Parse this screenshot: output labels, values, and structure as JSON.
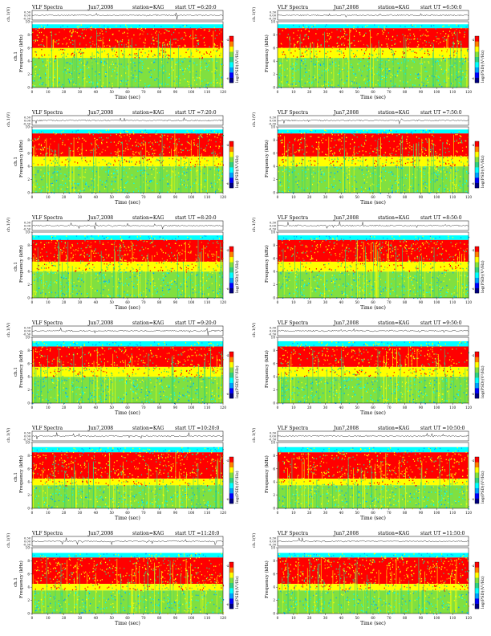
{
  "page": {
    "date": "Jun7,2008"
  },
  "chart_data": [
    {
      "type": "heatmap",
      "title": "VLF Spectra",
      "date": "Jun7,2008",
      "station": "station=KAG",
      "start": "start UT =6:20:0",
      "timeseries_label": "ch.1(V)",
      "timeseries_ticks": [
        "0.30",
        "0.00",
        "-0.30"
      ],
      "ylabel": "Frequency (kHz)",
      "channel_label": "ch.1",
      "xlabel": "Time (sec)",
      "xlim": [
        0,
        120
      ],
      "ylim": [
        0,
        10
      ],
      "x_ticks": [
        0,
        10,
        20,
        30,
        40,
        50,
        60,
        70,
        80,
        90,
        100,
        110,
        120
      ],
      "y_ticks": [
        0,
        2,
        4,
        6,
        8,
        10
      ],
      "colorbar_label": "log(PSD)(V²/Hz)",
      "colorbar_ticks": [
        "-4",
        "-6"
      ],
      "colorscale": [
        "#000080",
        "#0000ff",
        "#00a0ff",
        "#00ffff",
        "#30d080",
        "#80e040",
        "#ffff00",
        "#ff8000",
        "#ff0000"
      ],
      "intensity_profile": {
        "band_top_khz": 9.6,
        "red_band_khz": [
          6.0,
          9.0
        ],
        "yellow_khz": [
          4.5,
          6.0
        ],
        "green_khz": [
          0,
          4.5
        ]
      }
    },
    {
      "type": "heatmap",
      "title": "VLF Spectra",
      "date": "Jun7,2008",
      "station": "station=KAG",
      "start": "start UT =6:50:0",
      "timeseries_label": "ch.1(V)",
      "timeseries_ticks": [
        "0.30",
        "0.00",
        "-0.30"
      ],
      "ylabel": "Frequency (kHz)",
      "channel_label": "",
      "xlabel": "Time (sec)",
      "xlim": [
        0,
        120
      ],
      "ylim": [
        0,
        10
      ],
      "x_ticks": [
        0,
        10,
        20,
        30,
        40,
        50,
        60,
        70,
        80,
        90,
        100,
        110,
        120
      ],
      "y_ticks": [
        0,
        2,
        4,
        6,
        8,
        10
      ],
      "colorbar_label": "log(PSD)(V²/Hz)",
      "colorbar_ticks": [
        "-4",
        "-6"
      ],
      "colorscale": [
        "#000080",
        "#0000ff",
        "#00a0ff",
        "#00ffff",
        "#30d080",
        "#80e040",
        "#ffff00",
        "#ff8000",
        "#ff0000"
      ],
      "intensity_profile": {
        "band_top_khz": 9.6,
        "red_band_khz": [
          6.0,
          9.0
        ],
        "yellow_khz": [
          4.5,
          6.0
        ],
        "green_khz": [
          0,
          4.5
        ]
      }
    },
    {
      "type": "heatmap",
      "title": "VLF Spectra",
      "date": "Jun7,2008",
      "station": "station=KAG",
      "start": "start UT =7:20:0",
      "timeseries_label": "ch.1(V)",
      "timeseries_ticks": [
        "0.30",
        "0.00",
        "-0.30"
      ],
      "ylabel": "Frequency (kHz)",
      "channel_label": "ch.1",
      "xlabel": "Time (sec)",
      "xlim": [
        0,
        120
      ],
      "ylim": [
        0,
        10
      ],
      "x_ticks": [
        0,
        10,
        20,
        30,
        40,
        50,
        60,
        70,
        80,
        90,
        100,
        110,
        120
      ],
      "y_ticks": [
        0,
        2,
        4,
        6,
        8,
        10
      ],
      "colorbar_label": "log(PSD)(V²/Hz)",
      "colorbar_ticks": [
        "-4",
        "-6"
      ],
      "colorscale": [
        "#000080",
        "#0000ff",
        "#00a0ff",
        "#00ffff",
        "#30d080",
        "#80e040",
        "#ffff00",
        "#ff8000",
        "#ff0000"
      ],
      "intensity_profile": {
        "band_top_khz": 9.6,
        "red_band_khz": [
          5.5,
          9.0
        ],
        "yellow_khz": [
          4.0,
          5.5
        ],
        "green_khz": [
          0,
          4.0
        ]
      }
    },
    {
      "type": "heatmap",
      "title": "VLF Spectra",
      "date": "Jun7,2008",
      "station": "station=KAG",
      "start": "start UT =7:50:0",
      "timeseries_label": "ch.1(V)",
      "timeseries_ticks": [
        "0.30",
        "0.00",
        "-0.30"
      ],
      "ylabel": "Frequency (kHz)",
      "channel_label": "",
      "xlabel": "Time (sec)",
      "xlim": [
        0,
        120
      ],
      "ylim": [
        0,
        10
      ],
      "x_ticks": [
        0,
        10,
        20,
        30,
        40,
        50,
        60,
        70,
        80,
        90,
        100,
        110,
        120
      ],
      "y_ticks": [
        0,
        2,
        4,
        6,
        8,
        10
      ],
      "colorbar_label": "log(PSD)(V²/Hz)",
      "colorbar_ticks": [
        "-4",
        "-6"
      ],
      "colorscale": [
        "#000080",
        "#0000ff",
        "#00a0ff",
        "#00ffff",
        "#30d080",
        "#80e040",
        "#ffff00",
        "#ff8000",
        "#ff0000"
      ],
      "intensity_profile": {
        "band_top_khz": 9.6,
        "red_band_khz": [
          5.5,
          9.0
        ],
        "yellow_khz": [
          4.0,
          5.5
        ],
        "green_khz": [
          0,
          4.0
        ]
      }
    },
    {
      "type": "heatmap",
      "title": "VLF Spectra",
      "date": "Jun7,2008",
      "station": "station=KAG",
      "start": "start UT =8:20:0",
      "timeseries_label": "ch.1(V)",
      "timeseries_ticks": [
        "0.30",
        "0.00",
        "-0.30"
      ],
      "ylabel": "Frequency (kHz)",
      "channel_label": "ch.1",
      "xlabel": "Time (sec)",
      "xlim": [
        0,
        120
      ],
      "ylim": [
        0,
        10
      ],
      "x_ticks": [
        0,
        10,
        20,
        30,
        40,
        50,
        60,
        70,
        80,
        90,
        100,
        110,
        120
      ],
      "y_ticks": [
        0,
        2,
        4,
        6,
        8,
        10
      ],
      "colorbar_label": "log(PSD)(V²/Hz)",
      "colorbar_ticks": [
        "-4",
        "-6"
      ],
      "colorscale": [
        "#000080",
        "#0000ff",
        "#00a0ff",
        "#00ffff",
        "#30d080",
        "#80e040",
        "#ffff00",
        "#ff8000",
        "#ff0000"
      ],
      "intensity_profile": {
        "band_top_khz": 9.5,
        "red_band_khz": [
          5.5,
          8.8
        ],
        "yellow_khz": [
          4.0,
          5.5
        ],
        "green_khz": [
          0,
          4.0
        ]
      }
    },
    {
      "type": "heatmap",
      "title": "VLF Spectra",
      "date": "Jun7,2008",
      "station": "station=KAG",
      "start": "start UT =8:50:0",
      "timeseries_label": "ch.1(V)",
      "timeseries_ticks": [
        "0.30",
        "0.00",
        "-0.30"
      ],
      "ylabel": "Frequency (kHz)",
      "channel_label": "",
      "xlabel": "Time (sec)",
      "xlim": [
        0,
        120
      ],
      "ylim": [
        0,
        10
      ],
      "x_ticks": [
        0,
        10,
        20,
        30,
        40,
        50,
        60,
        70,
        80,
        90,
        100,
        110,
        120
      ],
      "y_ticks": [
        0,
        2,
        4,
        6,
        8,
        10
      ],
      "colorbar_label": "log(PSD)(V²/Hz)",
      "colorbar_ticks": [
        "-4",
        "-6"
      ],
      "colorscale": [
        "#000080",
        "#0000ff",
        "#00a0ff",
        "#00ffff",
        "#30d080",
        "#80e040",
        "#ffff00",
        "#ff8000",
        "#ff0000"
      ],
      "intensity_profile": {
        "band_top_khz": 9.5,
        "red_band_khz": [
          5.5,
          8.8
        ],
        "yellow_khz": [
          4.0,
          5.5
        ],
        "green_khz": [
          0,
          4.0
        ]
      }
    },
    {
      "type": "heatmap",
      "title": "VLF Spectra",
      "date": "Jun7,2008",
      "station": "station=KAG",
      "start": "start UT =9:20:0",
      "timeseries_label": "ch.1(V)",
      "timeseries_ticks": [
        "0.30",
        "0.00",
        "-0.30"
      ],
      "ylabel": "Frequency (kHz)",
      "channel_label": "ch.1",
      "xlabel": "Time (sec)",
      "xlim": [
        0,
        120
      ],
      "ylim": [
        0,
        10
      ],
      "x_ticks": [
        0,
        10,
        20,
        30,
        40,
        50,
        60,
        70,
        80,
        90,
        100,
        110,
        120
      ],
      "y_ticks": [
        0,
        2,
        4,
        6,
        8,
        10
      ],
      "colorbar_label": "log(PSD)(V²/Hz)",
      "colorbar_ticks": [
        "-4",
        "-6"
      ],
      "colorscale": [
        "#000080",
        "#0000ff",
        "#00a0ff",
        "#00ffff",
        "#30d080",
        "#80e040",
        "#ffff00",
        "#ff8000",
        "#ff0000"
      ],
      "intensity_profile": {
        "band_top_khz": 9.4,
        "red_band_khz": [
          5.5,
          8.6
        ],
        "yellow_khz": [
          4.0,
          5.5
        ],
        "green_khz": [
          0,
          4.0
        ]
      }
    },
    {
      "type": "heatmap",
      "title": "VLF Spectra",
      "date": "Jun7,2008",
      "station": "station=KAG",
      "start": "start UT =9:50:0",
      "timeseries_label": "ch.1(V)",
      "timeseries_ticks": [
        "0.30",
        "0.00",
        "-0.30"
      ],
      "ylabel": "Frequency (kHz)",
      "channel_label": "",
      "xlabel": "Time (sec)",
      "xlim": [
        0,
        120
      ],
      "ylim": [
        0,
        10
      ],
      "x_ticks": [
        0,
        10,
        20,
        30,
        40,
        50,
        60,
        70,
        80,
        90,
        100,
        110,
        120
      ],
      "y_ticks": [
        0,
        2,
        4,
        6,
        8,
        10
      ],
      "colorbar_label": "log(PSD)(V²/Hz)",
      "colorbar_ticks": [
        "-4",
        "-6"
      ],
      "colorscale": [
        "#000080",
        "#0000ff",
        "#00a0ff",
        "#00ffff",
        "#30d080",
        "#80e040",
        "#ffff00",
        "#ff8000",
        "#ff0000"
      ],
      "intensity_profile": {
        "band_top_khz": 9.4,
        "red_band_khz": [
          5.5,
          8.6
        ],
        "yellow_khz": [
          4.0,
          5.5
        ],
        "green_khz": [
          0,
          4.0
        ]
      }
    },
    {
      "type": "heatmap",
      "title": "VLF Spectra",
      "date": "Jun7,2008",
      "station": "station=KAG",
      "start": "start UT =10:20:0",
      "timeseries_label": "ch.1(V)",
      "timeseries_ticks": [
        "0.30",
        "0.00",
        "-0.30"
      ],
      "ylabel": "Frequency (kHz)",
      "channel_label": "ch.1",
      "xlabel": "Time (sec)",
      "xlim": [
        0,
        120
      ],
      "ylim": [
        0,
        10
      ],
      "x_ticks": [
        0,
        10,
        20,
        30,
        40,
        50,
        60,
        70,
        80,
        90,
        100,
        110,
        120
      ],
      "y_ticks": [
        0,
        2,
        4,
        6,
        8,
        10
      ],
      "colorbar_label": "log(PSD)(V²/Hz)",
      "colorbar_ticks": [
        "-4",
        "-6"
      ],
      "colorscale": [
        "#000080",
        "#0000ff",
        "#00a0ff",
        "#00ffff",
        "#30d080",
        "#80e040",
        "#ffff00",
        "#ff8000",
        "#ff0000"
      ],
      "intensity_profile": {
        "band_top_khz": 9.3,
        "red_band_khz": [
          4.5,
          8.5
        ],
        "yellow_khz": [
          3.5,
          4.5
        ],
        "green_khz": [
          0,
          3.5
        ]
      }
    },
    {
      "type": "heatmap",
      "title": "VLF Spectra",
      "date": "Jun7,2008",
      "station": "station=KAG",
      "start": "start UT =10:50:0",
      "timeseries_label": "ch.1(V)",
      "timeseries_ticks": [
        "0.30",
        "0.00",
        "-0.30"
      ],
      "ylabel": "Frequency (kHz)",
      "channel_label": "",
      "xlabel": "Time (sec)",
      "xlim": [
        0,
        120
      ],
      "ylim": [
        0,
        10
      ],
      "x_ticks": [
        0,
        10,
        20,
        30,
        40,
        50,
        60,
        70,
        80,
        90,
        100,
        110,
        120
      ],
      "y_ticks": [
        0,
        2,
        4,
        6,
        8,
        10
      ],
      "colorbar_label": "log(PSD)(V²/Hz)",
      "colorbar_ticks": [
        "-4",
        "-6"
      ],
      "colorscale": [
        "#000080",
        "#0000ff",
        "#00a0ff",
        "#00ffff",
        "#30d080",
        "#80e040",
        "#ffff00",
        "#ff8000",
        "#ff0000"
      ],
      "intensity_profile": {
        "band_top_khz": 9.3,
        "red_band_khz": [
          4.5,
          8.5
        ],
        "yellow_khz": [
          3.5,
          4.5
        ],
        "green_khz": [
          0,
          3.5
        ]
      }
    },
    {
      "type": "heatmap",
      "title": "VLF Spectra",
      "date": "Jun7,2008",
      "station": "station=KAG",
      "start": "start UT =11:20:0",
      "timeseries_label": "ch.1(V)",
      "timeseries_ticks": [
        "0.30",
        "0.00",
        "-0.30"
      ],
      "ylabel": "Frequency (kHz)",
      "channel_label": "ch.1",
      "xlabel": "Time (sec)",
      "xlim": [
        0,
        120
      ],
      "ylim": [
        0,
        10
      ],
      "x_ticks": [
        0,
        10,
        20,
        30,
        40,
        50,
        60,
        70,
        80,
        90,
        100,
        110,
        120
      ],
      "y_ticks": [
        0,
        2,
        4,
        6,
        8,
        10
      ],
      "colorbar_label": "log(PSD)(V²/Hz)",
      "colorbar_ticks": [
        "-4",
        "-6"
      ],
      "colorscale": [
        "#000080",
        "#0000ff",
        "#00a0ff",
        "#00ffff",
        "#30d080",
        "#80e040",
        "#ffff00",
        "#ff8000",
        "#ff0000"
      ],
      "intensity_profile": {
        "band_top_khz": 9.2,
        "red_band_khz": [
          4.5,
          8.5
        ],
        "yellow_khz": [
          3.5,
          4.5
        ],
        "green_khz": [
          0,
          3.5
        ]
      }
    },
    {
      "type": "heatmap",
      "title": "VLF Spectra",
      "date": "Jun7,2008",
      "station": "station=KAG",
      "start": "start UT =11:50:0",
      "timeseries_label": "ch.1(V)",
      "timeseries_ticks": [
        "0.30",
        "0.00",
        "-0.30"
      ],
      "ylabel": "Frequency (kHz)",
      "channel_label": "",
      "xlabel": "Time (sec)",
      "xlim": [
        0,
        120
      ],
      "ylim": [
        0,
        10
      ],
      "x_ticks": [
        0,
        10,
        20,
        30,
        40,
        50,
        60,
        70,
        80,
        90,
        100,
        110,
        120
      ],
      "y_ticks": [
        0,
        2,
        4,
        6,
        8,
        10
      ],
      "colorbar_label": "log(PSD)(V²/Hz)",
      "colorbar_ticks": [
        "-4",
        "-6"
      ],
      "colorscale": [
        "#000080",
        "#0000ff",
        "#00a0ff",
        "#00ffff",
        "#30d080",
        "#80e040",
        "#ffff00",
        "#ff8000",
        "#ff0000"
      ],
      "intensity_profile": {
        "band_top_khz": 9.2,
        "red_band_khz": [
          4.5,
          8.5
        ],
        "yellow_khz": [
          3.5,
          4.5
        ],
        "green_khz": [
          0,
          3.5
        ]
      }
    }
  ]
}
